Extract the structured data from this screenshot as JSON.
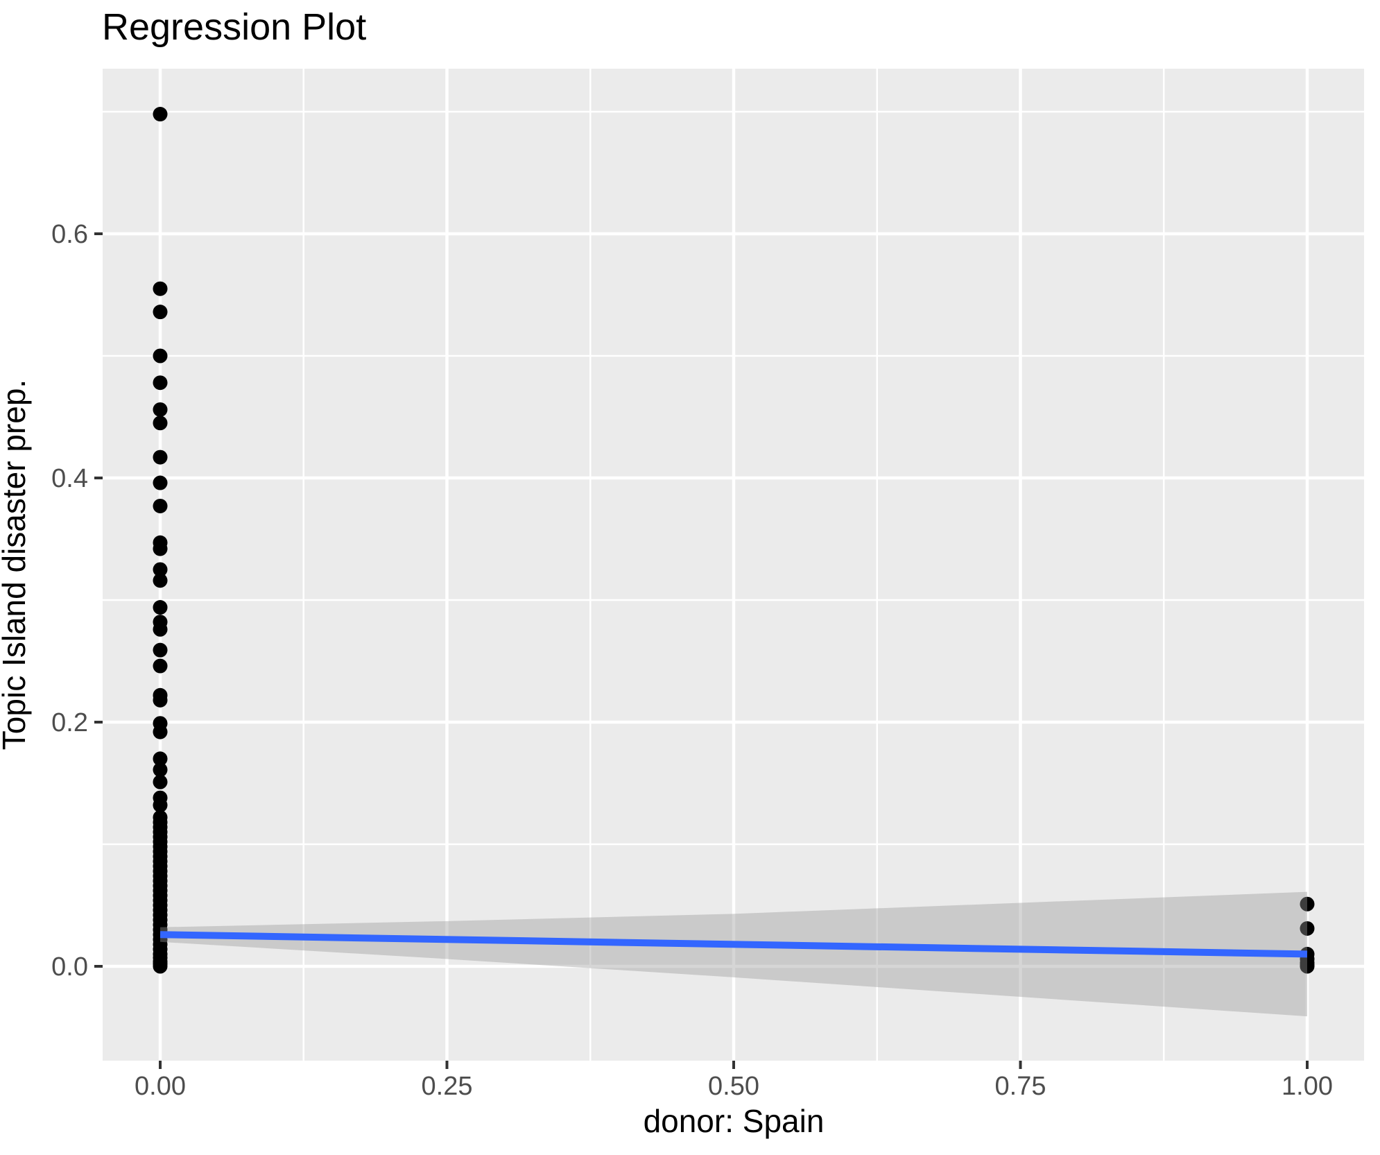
{
  "title": "Regression Plot",
  "axes": {
    "x": {
      "label": "donor: Spain",
      "tick_labels": [
        "0.00",
        "0.25",
        "0.50",
        "0.75",
        "1.00"
      ],
      "tick_values": [
        0,
        0.25,
        0.5,
        0.75,
        1
      ],
      "minor_values": [
        0.125,
        0.375,
        0.625,
        0.875
      ]
    },
    "y": {
      "label": "Topic Island disaster prep.",
      "tick_labels": [
        "0.0",
        "0.2",
        "0.4",
        "0.6"
      ],
      "tick_values": [
        0,
        0.2,
        0.4,
        0.6
      ],
      "minor_values": [
        0.1,
        0.3,
        0.5,
        0.7
      ]
    }
  },
  "chart_data": {
    "type": "scatter",
    "title": "Regression Plot",
    "xlabel": "donor: Spain",
    "ylabel": "Topic Island disaster prep.",
    "xlim": [
      -0.05,
      1.05
    ],
    "ylim": [
      -0.078,
      0.735
    ],
    "grid": true,
    "legend": false,
    "series": [
      {
        "name": "observations donor=0",
        "type": "scatter",
        "x": 0,
        "y": [
          0.698,
          0.555,
          0.536,
          0.5,
          0.478,
          0.456,
          0.445,
          0.417,
          0.396,
          0.377,
          0.347,
          0.342,
          0.325,
          0.316,
          0.294,
          0.282,
          0.276,
          0.259,
          0.246,
          0.222,
          0.218,
          0.199,
          0.192,
          0.17,
          0.161,
          0.151,
          0.138,
          0.132,
          0.122,
          0.118,
          0.114,
          0.11,
          0.106,
          0.102,
          0.098,
          0.094,
          0.09,
          0.086,
          0.082,
          0.078,
          0.074,
          0.07,
          0.066,
          0.062,
          0.058,
          0.054,
          0.05,
          0.046,
          0.042,
          0.038,
          0.034,
          0.03,
          0.026,
          0.022,
          0.018,
          0.014,
          0.01,
          0.007,
          0.004,
          0.002,
          0.0
        ]
      },
      {
        "name": "observations donor=1",
        "type": "scatter",
        "x": 1,
        "y": [
          0.051,
          0.031,
          0.01,
          0.006,
          0.003,
          0.001,
          0.0
        ]
      },
      {
        "name": "regression line",
        "type": "line",
        "x": [
          0,
          1
        ],
        "y": [
          0.026,
          0.01
        ]
      },
      {
        "name": "confidence band",
        "type": "ribbon",
        "x": [
          0,
          0.25,
          0.5,
          0.75,
          1
        ],
        "upper": [
          0.032,
          0.037,
          0.043,
          0.052,
          0.061
        ],
        "lower": [
          0.02,
          0.006,
          -0.009,
          -0.025,
          -0.041
        ]
      }
    ],
    "colors": {
      "point": "#000000",
      "line": "#3366FF",
      "ribbon_fill": "rgba(153,153,153,0.4)",
      "panel_background": "#EBEBEB",
      "gridline": "#FFFFFF",
      "tick_text": "#4D4D4D",
      "tick_mark": "#333333",
      "title_text": "#000000"
    }
  }
}
